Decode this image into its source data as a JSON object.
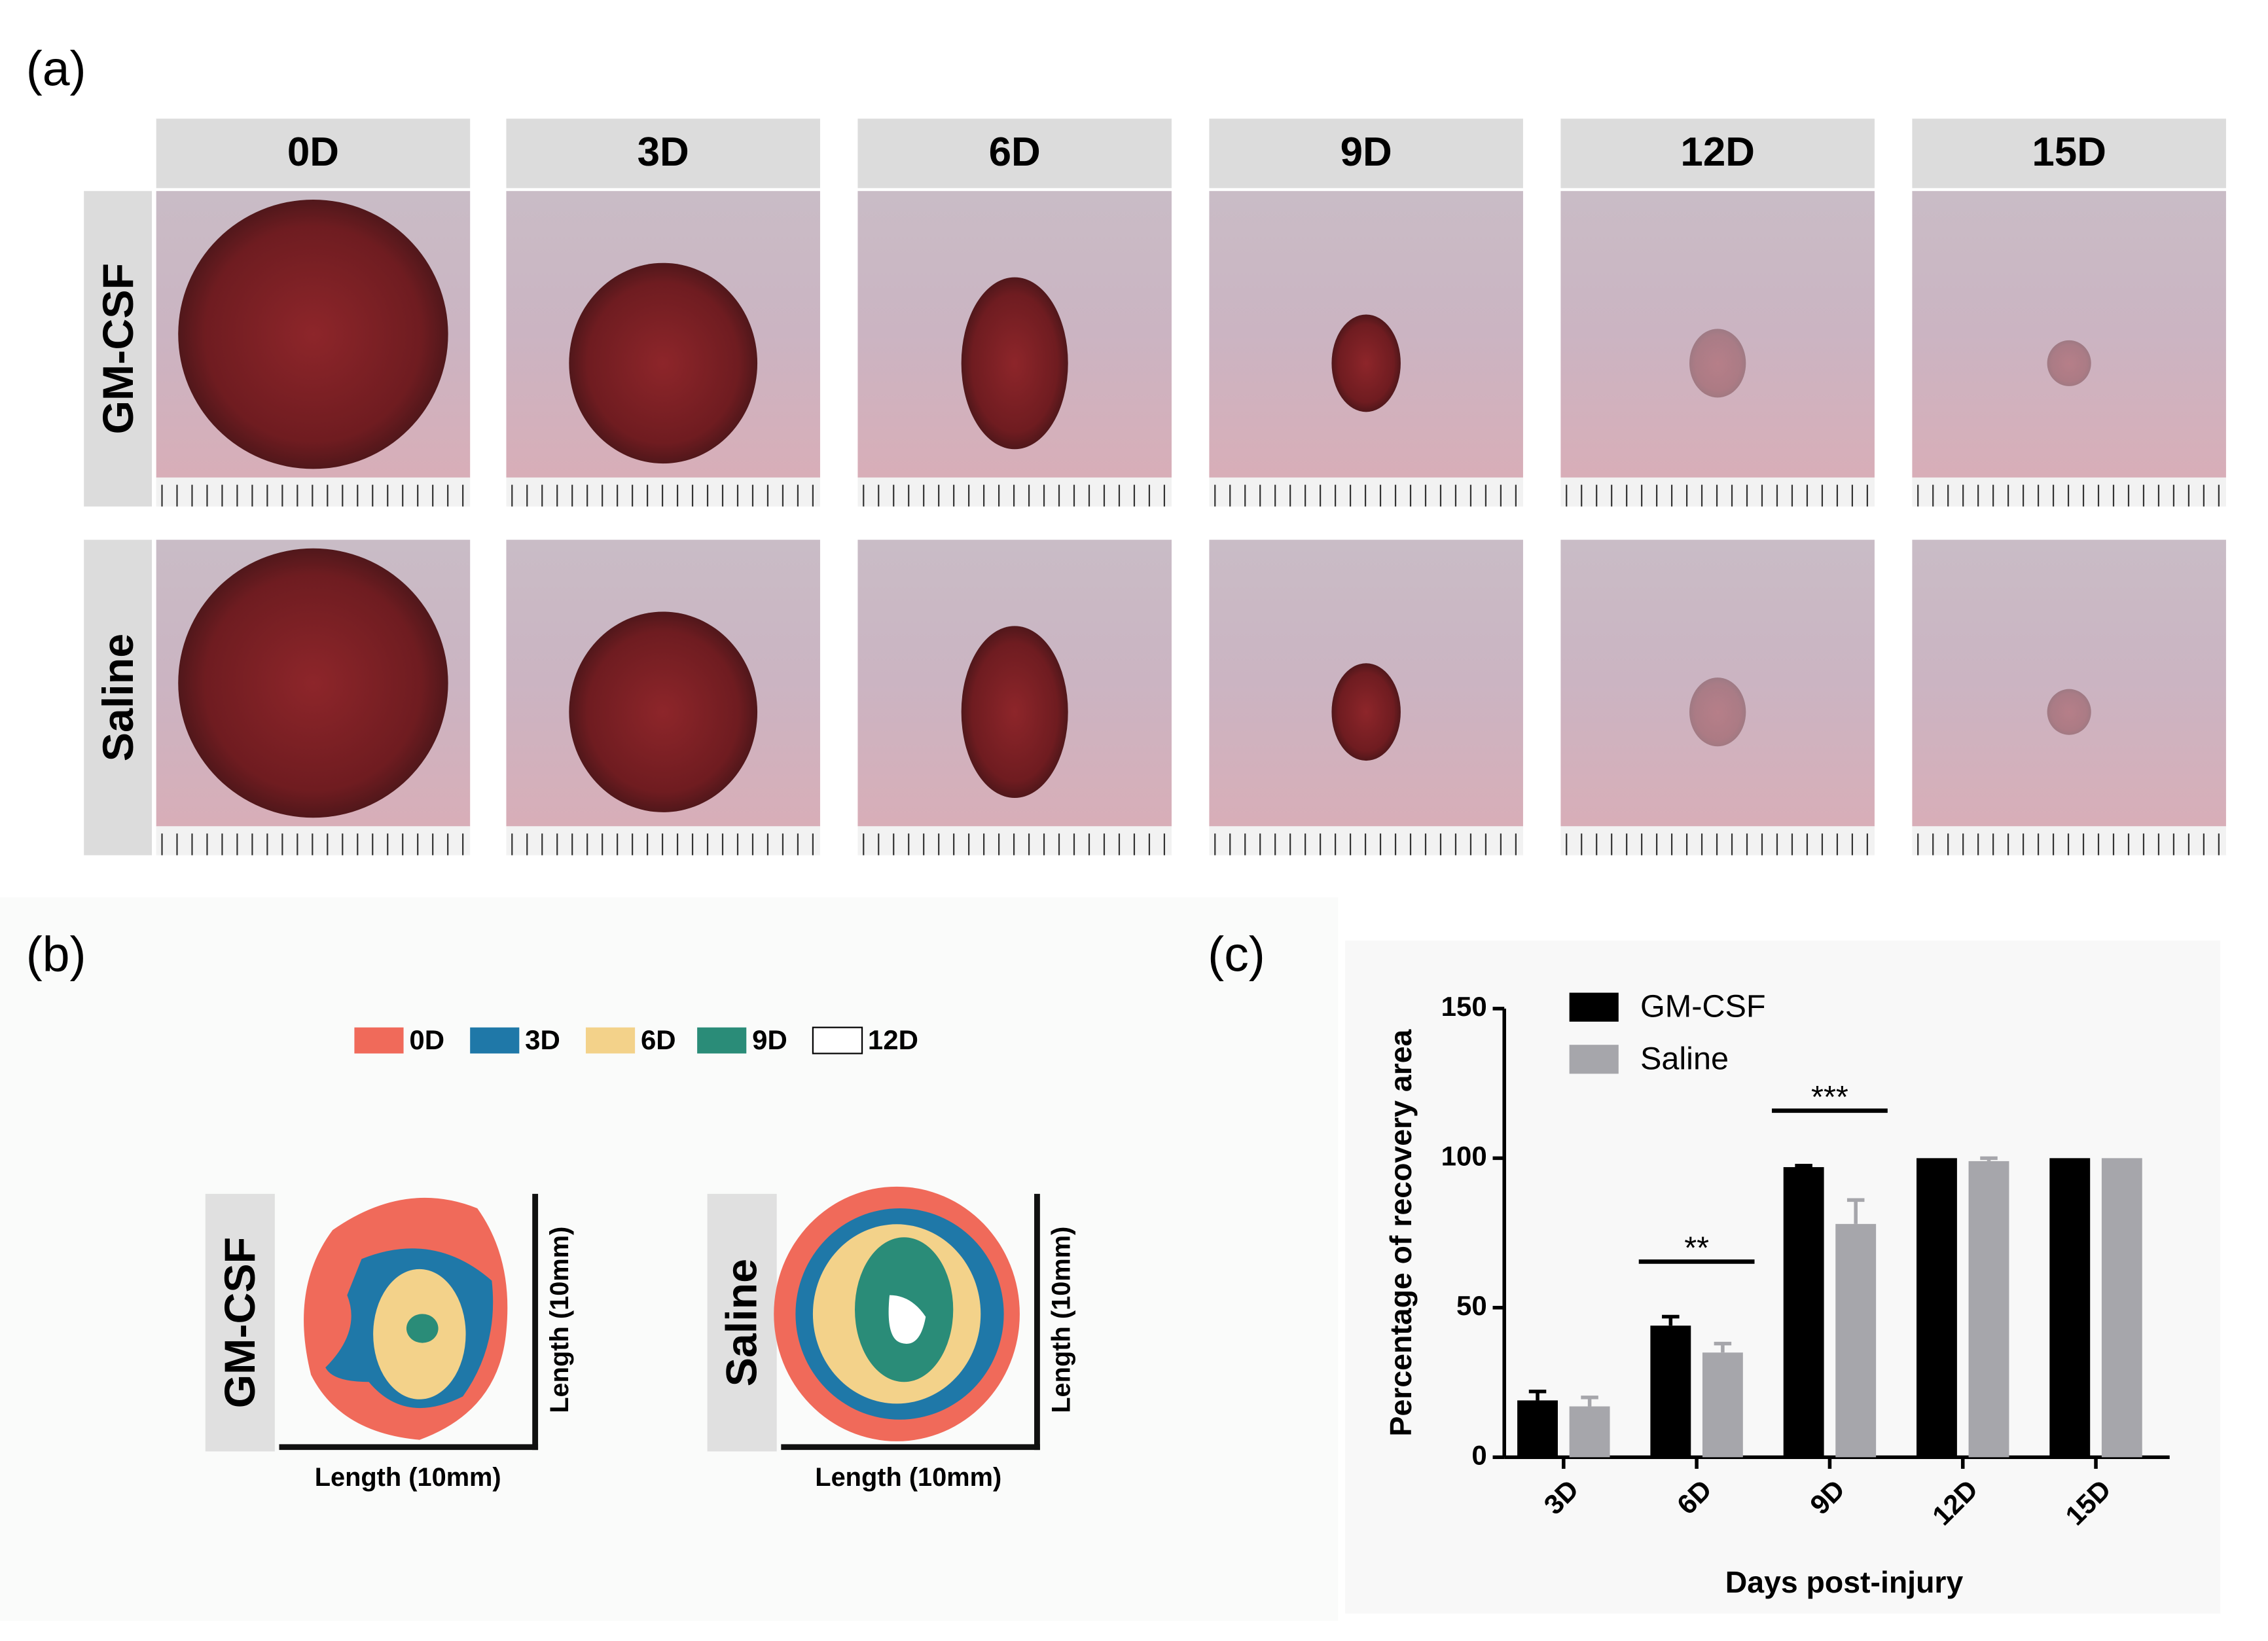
{
  "panel_labels": [
    "(a)",
    "(b)",
    "(c)"
  ],
  "photos": {
    "columns": [
      "0D",
      "3D",
      "6D",
      "9D",
      "12D",
      "15D"
    ],
    "rows": [
      "GM-CSF",
      "Saline"
    ]
  },
  "outline": {
    "legend": [
      {
        "name": "0D",
        "color": "#f06a5a"
      },
      {
        "name": "3D",
        "color": "#1f78a8"
      },
      {
        "name": "6D",
        "color": "#f3d28a"
      },
      {
        "name": "9D",
        "color": "#2a8c78"
      },
      {
        "name": "12D",
        "color": "#ffffff"
      }
    ],
    "groups": [
      "GM-CSF",
      "Saline"
    ],
    "axis_label": "Length (10mm)"
  },
  "chart_data": {
    "type": "bar",
    "xlabel": "Days post-injury",
    "ylabel": "Percentage of recovery area",
    "categories": [
      "3D",
      "6D",
      "9D",
      "12D",
      "15D"
    ],
    "series": [
      {
        "name": "GM-CSF",
        "color": "#000000",
        "values": [
          19,
          44,
          97,
          100,
          100
        ],
        "errors": [
          3,
          3,
          0.5,
          0,
          0
        ]
      },
      {
        "name": "Saline",
        "color": "#a6a6ab",
        "values": [
          17,
          35,
          78,
          99,
          100
        ],
        "errors": [
          3,
          3,
          8,
          1,
          0
        ]
      }
    ],
    "ylim": [
      0,
      150
    ],
    "yticks": [
      0,
      50,
      100,
      150
    ],
    "annotations": [
      {
        "text": "**",
        "category": 1
      },
      {
        "text": "***",
        "category": 2
      }
    ],
    "legend": "upper left"
  }
}
